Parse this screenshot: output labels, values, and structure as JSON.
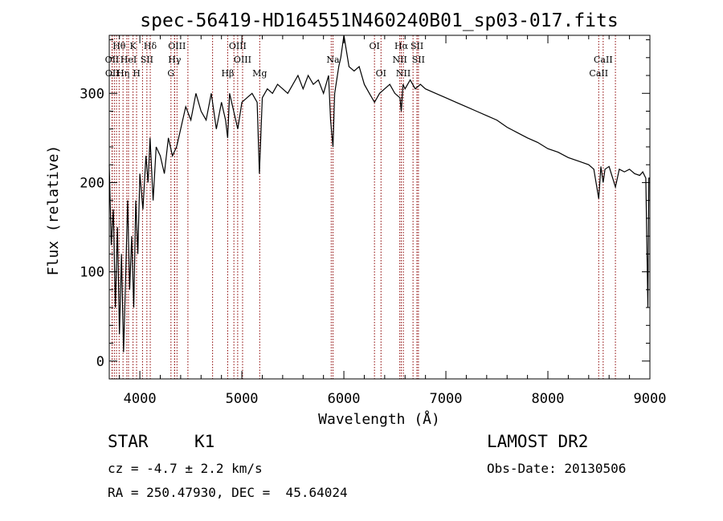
{
  "chart_data": {
    "type": "line",
    "title": "spec-56419-HD164551N460240B01_sp03-017.fits",
    "xlabel": "Wavelength (Å)",
    "ylabel": "Flux (relative)",
    "xlim": [
      3700,
      9000
    ],
    "ylim": [
      -20,
      365
    ],
    "xticks": [
      4000,
      5000,
      6000,
      7000,
      8000,
      9000
    ],
    "yticks": [
      0,
      100,
      200,
      300
    ],
    "grid": false,
    "line_color": "#000000",
    "marker_color": "#8b0000",
    "series": [
      {
        "x": [
          3700,
          3720,
          3740,
          3760,
          3780,
          3800,
          3820,
          3840,
          3860,
          3880,
          3900,
          3920,
          3940,
          3960,
          3980,
          4000,
          4030,
          4060,
          4080,
          4100,
          4130,
          4160,
          4200,
          4240,
          4280,
          4320,
          4360,
          4400,
          4450,
          4500,
          4550,
          4600,
          4650,
          4700,
          4750,
          4800,
          4840,
          4861,
          4880,
          4920,
          4960,
          5000,
          5050,
          5100,
          5150,
          5172,
          5200,
          5250,
          5300,
          5350,
          5400,
          5450,
          5500,
          5550,
          5600,
          5650,
          5700,
          5750,
          5800,
          5850,
          5870,
          5893,
          5910,
          5950,
          5970,
          6000,
          6050,
          6100,
          6150,
          6200,
          6250,
          6300,
          6350,
          6400,
          6450,
          6500,
          6550,
          6563,
          6580,
          6600,
          6650,
          6700,
          6750,
          6800,
          6900,
          7000,
          7100,
          7200,
          7300,
          7400,
          7500,
          7600,
          7700,
          7800,
          7900,
          8000,
          8100,
          8200,
          8300,
          8400,
          8450,
          8498,
          8520,
          8542,
          8560,
          8600,
          8662,
          8700,
          8750,
          8800,
          8850,
          8900,
          8930,
          8960,
          8980,
          8990,
          9000
        ],
        "y": [
          220,
          130,
          170,
          60,
          150,
          30,
          120,
          10,
          90,
          180,
          80,
          140,
          60,
          180,
          120,
          210,
          170,
          230,
          200,
          250,
          180,
          240,
          230,
          210,
          250,
          230,
          240,
          260,
          285,
          270,
          300,
          280,
          270,
          300,
          260,
          290,
          270,
          250,
          300,
          280,
          260,
          290,
          295,
          300,
          290,
          210,
          295,
          305,
          300,
          310,
          305,
          300,
          310,
          320,
          305,
          320,
          310,
          315,
          300,
          320,
          270,
          240,
          300,
          330,
          340,
          370,
          330,
          325,
          330,
          310,
          300,
          290,
          300,
          305,
          310,
          300,
          295,
          280,
          310,
          305,
          315,
          305,
          310,
          305,
          300,
          295,
          290,
          285,
          280,
          275,
          270,
          262,
          256,
          250,
          245,
          238,
          234,
          228,
          224,
          220,
          215,
          182,
          218,
          200,
          215,
          218,
          195,
          215,
          212,
          215,
          210,
          208,
          212,
          205,
          60,
          205,
          205
        ]
      }
    ],
    "lines": [
      {
        "label": "Hθ",
        "x": 3797,
        "row": 0
      },
      {
        "label": "K",
        "x": 3933,
        "row": 0
      },
      {
        "label": "Hδ",
        "x": 4102,
        "row": 0
      },
      {
        "label": "OIII",
        "x": 4364,
        "row": 0
      },
      {
        "label": "OIII",
        "x": 4959,
        "row": 0
      },
      {
        "label": "OI",
        "x": 6300,
        "row": 0
      },
      {
        "label": "Hα",
        "x": 6563,
        "row": 0
      },
      {
        "label": "SII",
        "x": 6717,
        "row": 0
      },
      {
        "label": "OII",
        "x": 3727,
        "row": 1
      },
      {
        "label": "HeI",
        "x": 3889,
        "row": 1
      },
      {
        "label": "SII",
        "x": 4069,
        "row": 1
      },
      {
        "label": "Hγ",
        "x": 4341,
        "row": 1
      },
      {
        "label": "OIII",
        "x": 5007,
        "row": 1
      },
      {
        "label": "Na",
        "x": 5893,
        "row": 1
      },
      {
        "label": "NII",
        "x": 6548,
        "row": 1
      },
      {
        "label": "SII",
        "x": 6731,
        "row": 1
      },
      {
        "label": "CaII",
        "x": 8542,
        "row": 1
      },
      {
        "label": "OII",
        "x": 3729,
        "row": 2
      },
      {
        "label": "Hη",
        "x": 3835,
        "row": 2
      },
      {
        "label": "H",
        "x": 3968,
        "row": 2
      },
      {
        "label": "G",
        "x": 4305,
        "row": 2
      },
      {
        "label": "Hβ",
        "x": 4861,
        "row": 2
      },
      {
        "label": "Mg",
        "x": 5175,
        "row": 2
      },
      {
        "label": "OI",
        "x": 6364,
        "row": 2
      },
      {
        "label": "NII",
        "x": 6583,
        "row": 2
      },
      {
        "label": "CaII",
        "x": 8498,
        "row": 2
      }
    ],
    "extra_lines_x": [
      3750,
      3771,
      3872,
      4026,
      4340,
      4471,
      4713,
      4922,
      5876,
      6678,
      6716,
      8662
    ]
  },
  "info": {
    "object_type": "STAR",
    "subclass": "K1",
    "release": "LAMOST DR2",
    "redshift": "cz = -4.7 ± 2.2 km/s",
    "obs_date": "Obs-Date: 20130506",
    "coords": "RA = 250.47930, DEC =  45.64024"
  }
}
